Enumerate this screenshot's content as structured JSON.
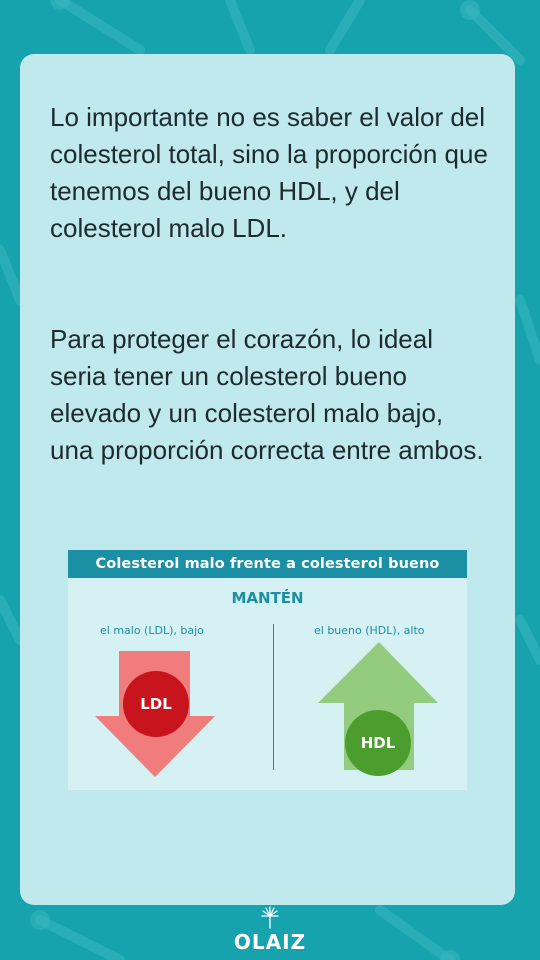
{
  "paragraphs": [
    "Lo importante no es saber el valor del colesterol total, sino la proporción que tenemos del bueno HDL, y del colesterol malo LDL.",
    "Para proteger el corazón, lo ideal seria tener un colesterol bueno elevado y un colesterol malo bajo, una proporción correcta entre ambos."
  ],
  "infographic": {
    "title": "Colesterol malo frente a colesterol bueno",
    "subtitle": "MANTÉN",
    "left": {
      "label": "el malo (LDL), bajo",
      "badge": "LDL"
    },
    "right": {
      "label": "el bueno (HDL), alto",
      "badge": "HDL"
    }
  },
  "logo": {
    "text": "OLAIZ"
  },
  "colors": {
    "background": "#16a3ad",
    "card": "#bfe9ed",
    "header": "#1b8fa3",
    "ldl_arrow": "#f07c7c",
    "ldl_badge": "#c8141c",
    "hdl_arrow": "#93cc7e",
    "hdl_badge": "#4b9d2d"
  },
  "icons": [
    "dandelion-icon",
    "down-arrow-icon",
    "up-arrow-icon"
  ]
}
